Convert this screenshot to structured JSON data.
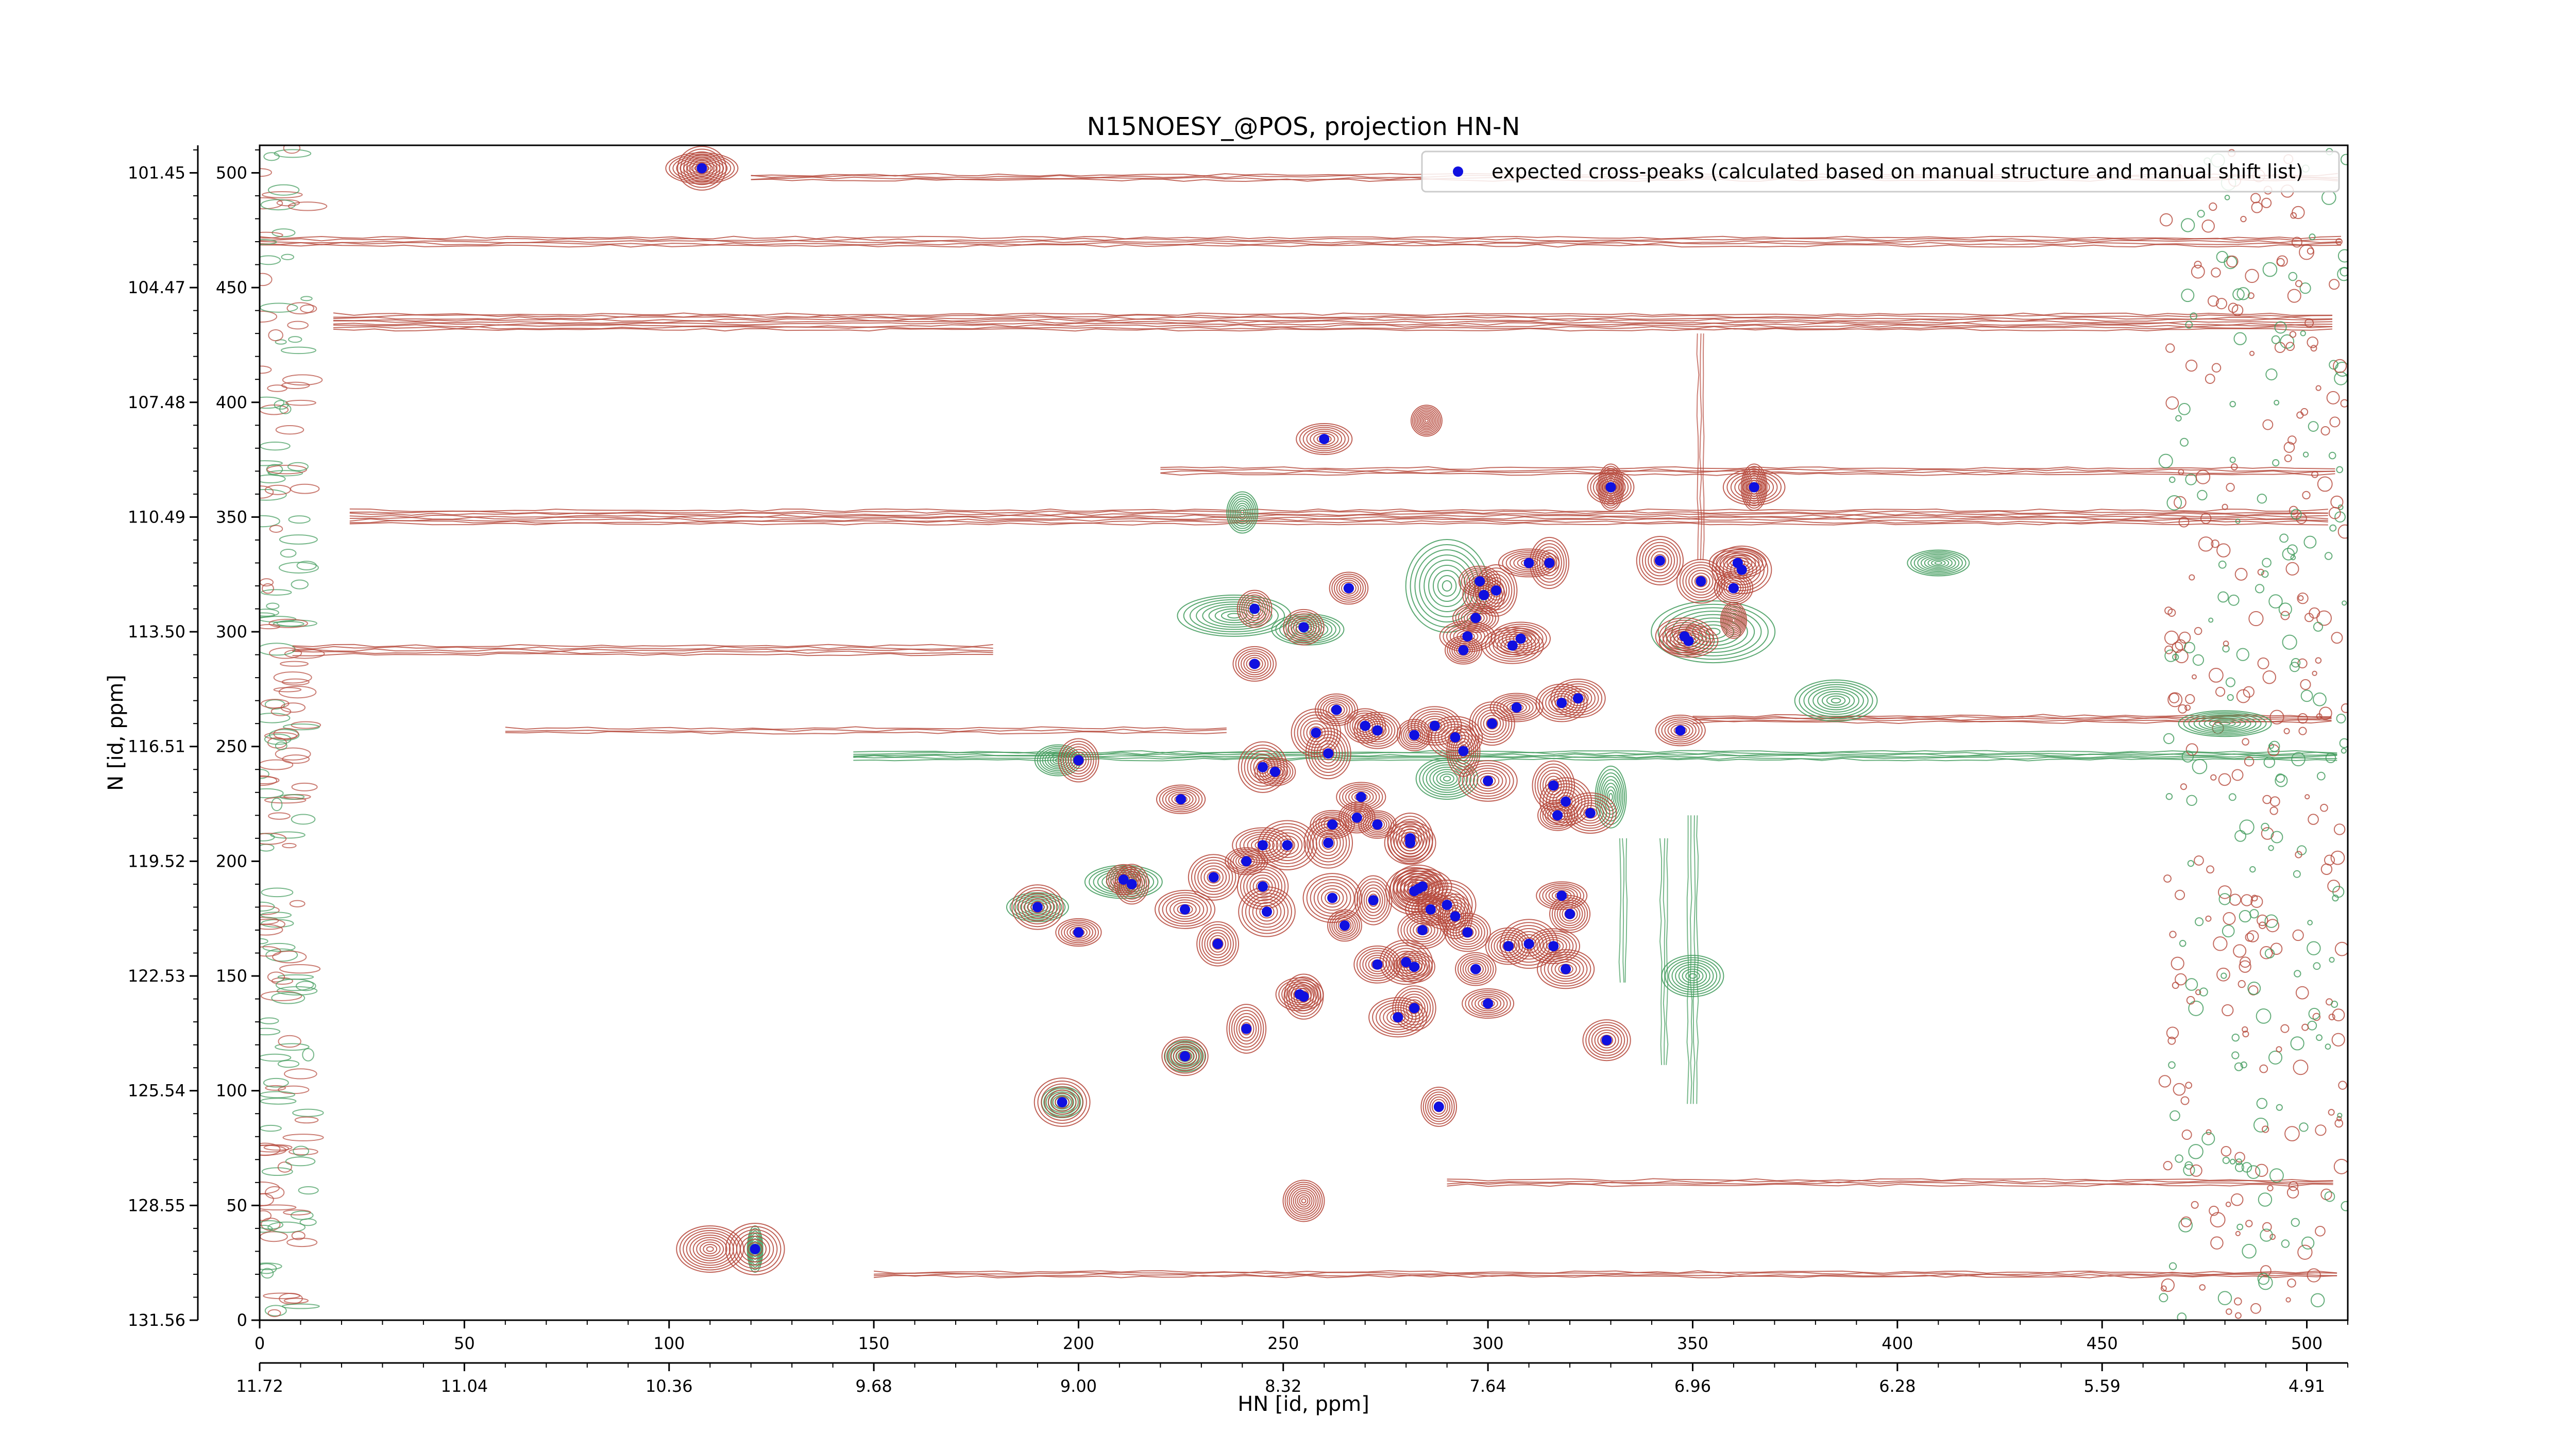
{
  "chart_data": {
    "type": "scatter",
    "title": "N15NOESY_@POS, projection HN-N",
    "xlabel": "HN [id, ppm]",
    "ylabel": "N [id, ppm]",
    "x_index_range": [
      0,
      510
    ],
    "y_index_range": [
      0,
      512
    ],
    "x_index_ticks": [
      "0",
      "50",
      "100",
      "150",
      "200",
      "250",
      "300",
      "350",
      "400",
      "450",
      "500"
    ],
    "x_ppm_ticks": [
      "11.72",
      "11.04",
      "10.36",
      "9.68",
      "9.00",
      "8.32",
      "7.64",
      "6.96",
      "6.28",
      "5.59",
      "4.91"
    ],
    "y_index_ticks": [
      "500",
      "450",
      "400",
      "350",
      "300",
      "250",
      "200",
      "150",
      "100",
      "50",
      "0"
    ],
    "y_ppm_ticks": [
      "101.45",
      "104.47",
      "107.48",
      "110.49",
      "113.50",
      "116.51",
      "119.52",
      "122.53",
      "125.54",
      "128.55",
      "131.56"
    ],
    "legend": {
      "position": "top-right",
      "entries": [
        "expected cross-peaks (calculated based on manual structure and manual shift list)"
      ]
    },
    "colors": {
      "positive_contour": "#b5473a",
      "negative_contour": "#3f9a5a",
      "marker": "#1010e0"
    },
    "series": [
      {
        "name": "expected cross-peaks (calculated based on manual structure and manual shift list)",
        "points": [
          [
            108,
            502
          ],
          [
            121,
            31
          ],
          [
            260,
            384
          ],
          [
            330,
            363
          ],
          [
            365,
            363
          ],
          [
            266,
            319
          ],
          [
            243,
            310
          ],
          [
            255,
            302
          ],
          [
            243,
            286
          ],
          [
            342,
            331
          ],
          [
            352,
            322
          ],
          [
            361,
            330
          ],
          [
            362,
            327
          ],
          [
            360,
            319
          ],
          [
            348,
            298
          ],
          [
            349,
            296
          ],
          [
            298,
            322
          ],
          [
            302,
            318
          ],
          [
            310,
            330
          ],
          [
            315,
            330
          ],
          [
            299,
            316
          ],
          [
            297,
            306
          ],
          [
            295,
            298
          ],
          [
            294,
            292
          ],
          [
            306,
            294
          ],
          [
            308,
            297
          ],
          [
            307,
            267
          ],
          [
            318,
            269
          ],
          [
            322,
            271
          ],
          [
            301,
            260
          ],
          [
            347,
            257
          ],
          [
            200,
            244
          ],
          [
            225,
            227
          ],
          [
            263,
            266
          ],
          [
            258,
            256
          ],
          [
            261,
            247
          ],
          [
            270,
            259
          ],
          [
            273,
            257
          ],
          [
            282,
            255
          ],
          [
            287,
            259
          ],
          [
            292,
            254
          ],
          [
            294,
            248
          ],
          [
            245,
            241
          ],
          [
            248,
            239
          ],
          [
            269,
            228
          ],
          [
            300,
            235
          ],
          [
            316,
            233
          ],
          [
            319,
            226
          ],
          [
            317,
            220
          ],
          [
            325,
            221
          ],
          [
            241,
            200
          ],
          [
            245,
            207
          ],
          [
            251,
            207
          ],
          [
            261,
            208
          ],
          [
            262,
            216
          ],
          [
            268,
            219
          ],
          [
            273,
            216
          ],
          [
            281,
            210
          ],
          [
            281,
            208
          ],
          [
            233,
            193
          ],
          [
            245,
            189
          ],
          [
            262,
            184
          ],
          [
            272,
            183
          ],
          [
            282,
            187
          ],
          [
            283,
            188
          ],
          [
            284,
            189
          ],
          [
            290,
            181
          ],
          [
            286,
            179
          ],
          [
            190,
            180
          ],
          [
            211,
            192
          ],
          [
            213,
            190
          ],
          [
            226,
            179
          ],
          [
            200,
            169
          ],
          [
            246,
            178
          ],
          [
            265,
            172
          ],
          [
            284,
            170
          ],
          [
            292,
            176
          ],
          [
            295,
            169
          ],
          [
            305,
            163
          ],
          [
            234,
            164
          ],
          [
            273,
            155
          ],
          [
            280,
            156
          ],
          [
            282,
            154
          ],
          [
            297,
            153
          ],
          [
            318,
            185
          ],
          [
            320,
            177
          ],
          [
            310,
            164
          ],
          [
            316,
            163
          ],
          [
            319,
            153
          ],
          [
            255,
            141
          ],
          [
            254,
            142
          ],
          [
            278,
            132
          ],
          [
            282,
            136
          ],
          [
            300,
            138
          ],
          [
            241,
            127
          ],
          [
            226,
            115
          ],
          [
            329,
            122
          ],
          [
            196,
            95
          ],
          [
            288,
            93
          ]
        ]
      }
    ]
  }
}
